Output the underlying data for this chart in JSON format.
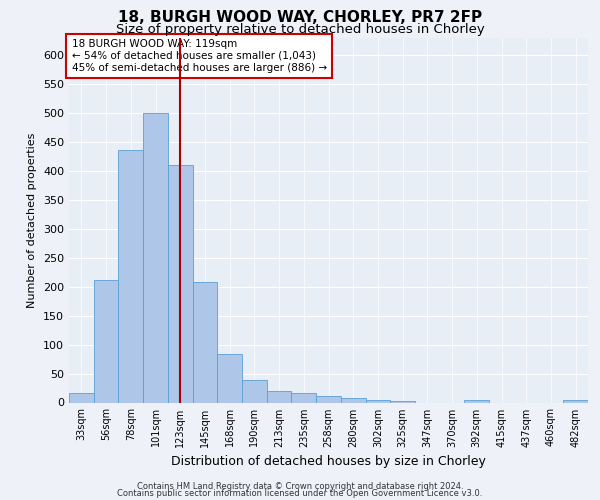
{
  "title_line1": "18, BURGH WOOD WAY, CHORLEY, PR7 2FP",
  "title_line2": "Size of property relative to detached houses in Chorley",
  "xlabel": "Distribution of detached houses by size in Chorley",
  "ylabel": "Number of detached properties",
  "footer_line1": "Contains HM Land Registry data © Crown copyright and database right 2024.",
  "footer_line2": "Contains public sector information licensed under the Open Government Licence v3.0.",
  "annotation_line1": "18 BURGH WOOD WAY: 119sqm",
  "annotation_line2": "← 54% of detached houses are smaller (1,043)",
  "annotation_line3": "45% of semi-detached houses are larger (886) →",
  "bar_color": "#aec6e8",
  "bar_edge_color": "#5a9fd4",
  "red_line_x": 4,
  "categories": [
    "33sqm",
    "56sqm",
    "78sqm",
    "101sqm",
    "123sqm",
    "145sqm",
    "168sqm",
    "190sqm",
    "213sqm",
    "235sqm",
    "258sqm",
    "280sqm",
    "302sqm",
    "325sqm",
    "347sqm",
    "370sqm",
    "392sqm",
    "415sqm",
    "437sqm",
    "460sqm",
    "482sqm"
  ],
  "values": [
    17,
    212,
    435,
    500,
    410,
    208,
    83,
    38,
    20,
    17,
    12,
    7,
    5,
    3,
    0,
    0,
    5,
    0,
    0,
    0,
    5
  ],
  "ylim": [
    0,
    630
  ],
  "yticks": [
    0,
    50,
    100,
    150,
    200,
    250,
    300,
    350,
    400,
    450,
    500,
    550,
    600
  ],
  "background_color": "#eef2f8",
  "plot_background": "#e8eef6",
  "grid_color": "#ffffff",
  "annotation_box_color": "#ffffff",
  "annotation_box_edge": "#cc0000",
  "red_line_color": "#aa0000",
  "title1_fontsize": 11,
  "title2_fontsize": 9.5,
  "ylabel_fontsize": 8,
  "xlabel_fontsize": 9,
  "tick_fontsize": 8,
  "xtick_fontsize": 7,
  "footer_fontsize": 6,
  "annotation_fontsize": 7.5
}
